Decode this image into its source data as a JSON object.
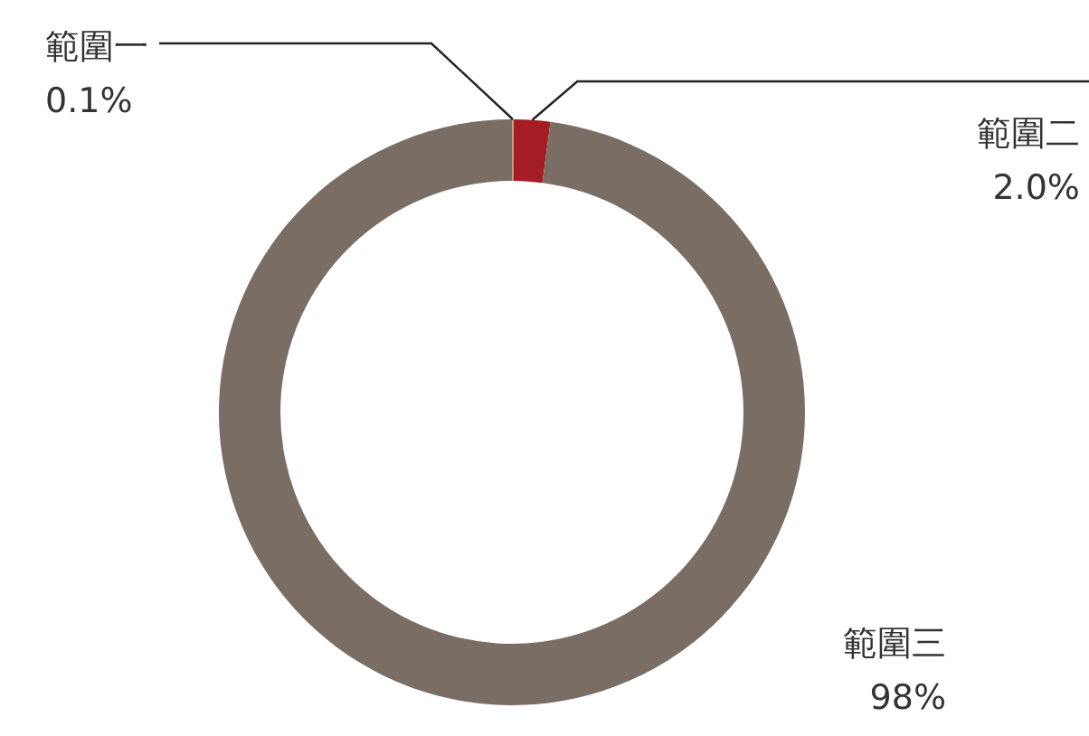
{
  "chart_data": {
    "type": "donut",
    "categories": [
      "範圍一",
      "範圍二",
      "範圍三"
    ],
    "values": [
      0.1,
      2.0,
      98
    ],
    "value_labels": [
      "0.1%",
      "2.0%",
      "98%"
    ],
    "colors": [
      "#c8a07a",
      "#a51d24",
      "#7a6e64"
    ],
    "legend": false
  }
}
